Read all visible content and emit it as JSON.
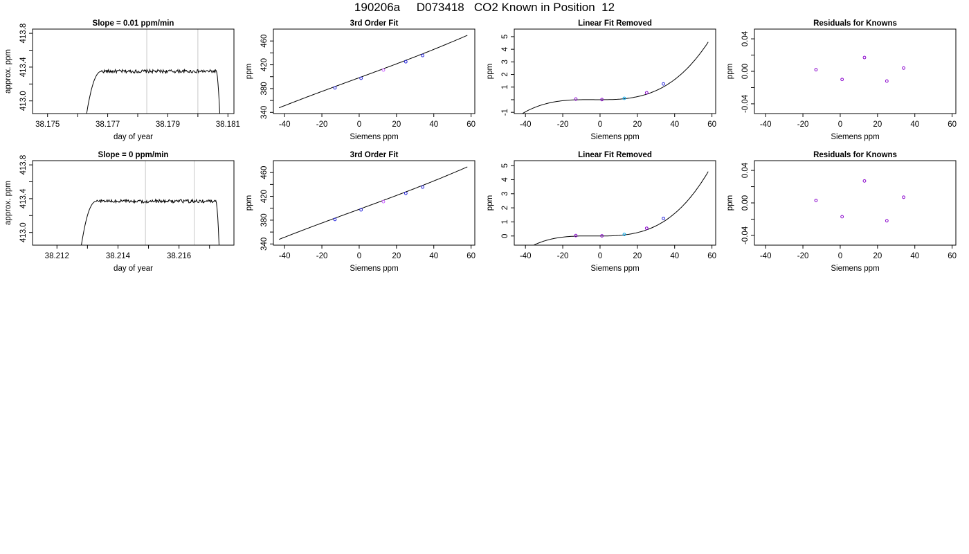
{
  "page": {
    "title": "190206a     D073418   CO2 Known in Position  12"
  },
  "chart_data": [
    {
      "type": "line",
      "title": "Slope =  0.01  ppm/min",
      "xlabel": "day of year",
      "ylabel": "approx. ppm",
      "xlim": [
        38.1745,
        38.1812
      ],
      "ylim": [
        412.85,
        413.85
      ],
      "xticks": [
        38.175,
        38.176,
        38.177,
        38.178,
        38.179,
        38.18,
        38.181
      ],
      "xtick_labels": [
        "38.175",
        "",
        "38.177",
        "",
        "38.179",
        "",
        "38.181"
      ],
      "yticks": [
        413.0,
        413.2,
        413.4,
        413.6,
        413.8
      ],
      "ytick_labels": [
        "413.0",
        "",
        "413.4",
        "",
        "413.8"
      ],
      "vlines": [
        38.1783,
        38.18
      ],
      "vline_color": "#c8c8c8",
      "trace": {
        "x0": 38.1763,
        "y0": 412.85,
        "rise_end": 38.1768,
        "plateau_end": 38.1806,
        "x_end": 38.18075,
        "level": 413.35,
        "noise": 0.02
      }
    },
    {
      "type": "scatter",
      "title": "3rd Order Fit",
      "xlabel": "Siemens ppm",
      "ylabel": "ppm",
      "xlim": [
        -46,
        62
      ],
      "ylim": [
        338,
        480
      ],
      "xticks": [
        -40,
        -20,
        0,
        20,
        40,
        60
      ],
      "xtick_labels": [
        "-40",
        "-20",
        "0",
        "20",
        "40",
        "60"
      ],
      "yticks": [
        340,
        360,
        380,
        400,
        420,
        440,
        460
      ],
      "ytick_labels": [
        "340",
        "",
        "380",
        "",
        "420",
        "",
        "460"
      ],
      "points": [
        {
          "x": -13,
          "y": 381.2,
          "color": "#2222dd"
        },
        {
          "x": 1,
          "y": 397.3,
          "color": "#2222dd"
        },
        {
          "x": 13,
          "y": 411.1,
          "color": "#cc66ff"
        },
        {
          "x": 25,
          "y": 425.1,
          "color": "#2222dd"
        },
        {
          "x": 34,
          "y": 435.6,
          "color": "#2222dd"
        }
      ],
      "curve": {
        "x_range": [
          -43,
          58
        ],
        "coef": [
          398.3,
          1.15,
          0.0002,
          2e-05
        ]
      }
    },
    {
      "type": "scatter",
      "title": "Linear Fit Removed",
      "xlabel": "Siemens ppm",
      "ylabel": "ppm",
      "xlim": [
        -46,
        62
      ],
      "ylim": [
        -1.1,
        5.6
      ],
      "xticks": [
        -40,
        -20,
        0,
        20,
        40,
        60
      ],
      "xtick_labels": [
        "-40",
        "-20",
        "0",
        "20",
        "40",
        "60"
      ],
      "yticks": [
        -1,
        0,
        1,
        2,
        3,
        4,
        5
      ],
      "ytick_labels": [
        "-1",
        "",
        "1",
        "2",
        "3",
        "4",
        "5"
      ],
      "points": [
        {
          "x": -13,
          "y": 0.05,
          "color": "#8800cc"
        },
        {
          "x": 1,
          "y": 0.01,
          "color": "#8800cc"
        },
        {
          "x": 13,
          "y": 0.11,
          "color": "#00aaee"
        },
        {
          "x": 25,
          "y": 0.55,
          "color": "#8800cc"
        },
        {
          "x": 34,
          "y": 1.25,
          "color": "#2222dd"
        }
      ],
      "curve": {
        "x_range": [
          -43,
          58
        ],
        "coef": [
          0,
          0,
          0.0002,
          2e-05
        ]
      }
    },
    {
      "type": "scatter",
      "title": "Residuals for Knowns",
      "xlabel": "Siemens ppm",
      "ylabel": "ppm",
      "xlim": [
        -46,
        62
      ],
      "ylim": [
        -0.052,
        0.052
      ],
      "xticks": [
        -40,
        -20,
        0,
        20,
        40,
        60
      ],
      "xtick_labels": [
        "-40",
        "-20",
        "0",
        "20",
        "40",
        "60"
      ],
      "yticks": [
        -0.04,
        -0.02,
        0.0,
        0.02,
        0.04
      ],
      "ytick_labels": [
        "-0.04",
        "",
        "0.00",
        "",
        "0.04"
      ],
      "points": [
        {
          "x": -13,
          "y": 0.002,
          "color": "#8800cc"
        },
        {
          "x": 1,
          "y": -0.01,
          "color": "#8800cc"
        },
        {
          "x": 13,
          "y": 0.017,
          "color": "#8800cc"
        },
        {
          "x": 25,
          "y": -0.012,
          "color": "#8800cc"
        },
        {
          "x": 34,
          "y": 0.004,
          "color": "#8800cc"
        }
      ]
    },
    {
      "type": "line",
      "title": "Slope =  0  ppm/min",
      "xlabel": "day of year",
      "ylabel": "approx. ppm",
      "xlim": [
        38.2112,
        38.2178
      ],
      "ylim": [
        412.85,
        413.85
      ],
      "xticks": [
        38.212,
        38.213,
        38.214,
        38.215,
        38.216,
        38.217
      ],
      "xtick_labels": [
        "38.212",
        "",
        "38.214",
        "",
        "38.216",
        ""
      ],
      "yticks": [
        413.0,
        413.2,
        413.4,
        413.6,
        413.8
      ],
      "ytick_labels": [
        "413.0",
        "",
        "413.4",
        "",
        "413.8"
      ],
      "vlines": [
        38.2149,
        38.2165
      ],
      "vline_color": "#c8c8c8",
      "trace": {
        "x0": 38.2128,
        "y0": 412.85,
        "rise_end": 38.2133,
        "plateau_end": 38.2172,
        "x_end": 38.21733,
        "level": 413.37,
        "noise": 0.02
      }
    },
    {
      "type": "scatter",
      "title": "3rd Order Fit",
      "xlabel": "Siemens ppm",
      "ylabel": "ppm",
      "xlim": [
        -46,
        62
      ],
      "ylim": [
        338,
        480
      ],
      "xticks": [
        -40,
        -20,
        0,
        20,
        40,
        60
      ],
      "xtick_labels": [
        "-40",
        "-20",
        "0",
        "20",
        "40",
        "60"
      ],
      "yticks": [
        340,
        360,
        380,
        400,
        420,
        440,
        460
      ],
      "ytick_labels": [
        "340",
        "",
        "380",
        "",
        "420",
        "",
        "460"
      ],
      "points": [
        {
          "x": -13,
          "y": 381.2,
          "color": "#2222dd"
        },
        {
          "x": 1,
          "y": 397.3,
          "color": "#2222dd"
        },
        {
          "x": 13,
          "y": 411.1,
          "color": "#cc66ff"
        },
        {
          "x": 25,
          "y": 425.1,
          "color": "#2222dd"
        },
        {
          "x": 34,
          "y": 435.6,
          "color": "#2222dd"
        }
      ],
      "curve": {
        "x_range": [
          -43,
          58
        ],
        "coef": [
          398.3,
          1.15,
          0.0002,
          2e-05
        ]
      }
    },
    {
      "type": "scatter",
      "title": "Linear Fit Removed",
      "xlabel": "Siemens ppm",
      "ylabel": "ppm",
      "xlim": [
        -46,
        62
      ],
      "ylim": [
        -0.65,
        5.35
      ],
      "xticks": [
        -40,
        -20,
        0,
        20,
        40,
        60
      ],
      "xtick_labels": [
        "-40",
        "-20",
        "0",
        "20",
        "40",
        "60"
      ],
      "yticks": [
        0,
        1,
        2,
        3,
        4,
        5
      ],
      "ytick_labels": [
        "0",
        "1",
        "2",
        "3",
        "4",
        "5"
      ],
      "points": [
        {
          "x": -13,
          "y": 0.03,
          "color": "#8800cc"
        },
        {
          "x": 1,
          "y": 0.01,
          "color": "#8800cc"
        },
        {
          "x": 13,
          "y": 0.11,
          "color": "#00aaee"
        },
        {
          "x": 25,
          "y": 0.55,
          "color": "#8800cc"
        },
        {
          "x": 34,
          "y": 1.25,
          "color": "#2222dd"
        }
      ],
      "curve": {
        "x_range": [
          -43,
          58
        ],
        "coef": [
          0,
          0,
          0.0002,
          2e-05
        ]
      }
    },
    {
      "type": "scatter",
      "title": "Residuals for Knowns",
      "xlabel": "Siemens ppm",
      "ylabel": "ppm",
      "xlim": [
        -46,
        62
      ],
      "ylim": [
        -0.052,
        0.052
      ],
      "xticks": [
        -40,
        -20,
        0,
        20,
        40,
        60
      ],
      "xtick_labels": [
        "-40",
        "-20",
        "0",
        "20",
        "40",
        "60"
      ],
      "yticks": [
        -0.04,
        -0.02,
        0.0,
        0.02,
        0.04
      ],
      "ytick_labels": [
        "-0.04",
        "",
        "0.00",
        "",
        "0.04"
      ],
      "points": [
        {
          "x": -13,
          "y": 0.003,
          "color": "#8800cc"
        },
        {
          "x": 1,
          "y": -0.017,
          "color": "#8800cc"
        },
        {
          "x": 13,
          "y": 0.027,
          "color": "#8800cc"
        },
        {
          "x": 25,
          "y": -0.022,
          "color": "#8800cc"
        },
        {
          "x": 34,
          "y": 0.007,
          "color": "#8800cc"
        }
      ]
    }
  ]
}
